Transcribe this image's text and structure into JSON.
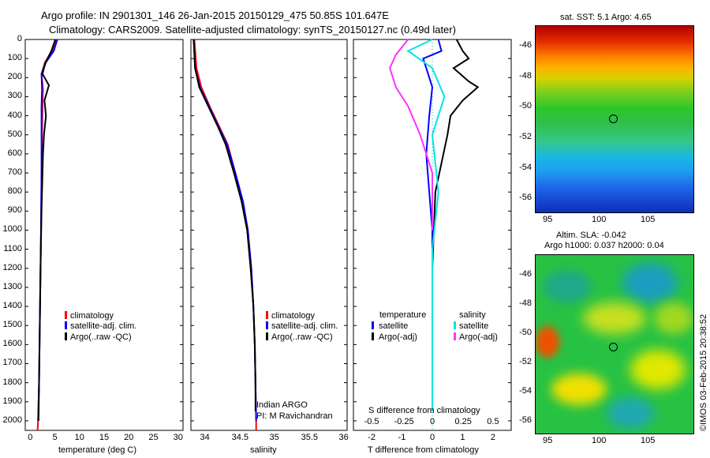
{
  "header": {
    "line1": "Argo profile: IN 2901301_146 26-Jan-2015 20150129_475 50.85S 101.647E",
    "line2": "Climatology: CARS2009. Satellite-adjusted climatology: synTS_20150127.nc (0.49d later)"
  },
  "depth_ticks": [
    "0",
    "100",
    "200",
    "300",
    "400",
    "500",
    "600",
    "700",
    "800",
    "900",
    "1000",
    "1100",
    "1200",
    "1300",
    "1400",
    "1500",
    "1600",
    "1700",
    "1800",
    "1900",
    "2000"
  ],
  "colors": {
    "climatology": "#ff0000",
    "satellite": "#0000ff",
    "argo": "#000000",
    "sal_satellite": "#00e5e5",
    "sal_argo": "#ff33ff"
  },
  "panel_temp": {
    "xlabel": "temperature (deg C)",
    "ticks": [
      "0",
      "5",
      "10",
      "15",
      "20",
      "25",
      "30"
    ],
    "legend": [
      "climatology",
      "satellite-adj. clim.",
      "Argo(..raw -QC)"
    ]
  },
  "panel_sal": {
    "xlabel": "salinity",
    "ticks": [
      "34",
      "34.5",
      "35",
      "35.5",
      "36"
    ],
    "legend": [
      "climatology",
      "satellite-adj. clim.",
      "Argo(..raw -QC)"
    ],
    "note1": "Indian ARGO",
    "note2": "PI: M Ravichandran"
  },
  "panel_diff": {
    "top_label": "S difference from climatology",
    "top_ticks": [
      "-0.5",
      "-0.25",
      "0",
      "0.25",
      "0.5"
    ],
    "bottom_ticks": [
      "-2",
      "-1",
      "0",
      "1",
      "2"
    ],
    "xlabel": "T difference from climatology",
    "legend_temp_title": "temperature",
    "legend_sal_title": "salinity",
    "legend_temp": [
      "satellite",
      "Argo(-adj)"
    ],
    "legend_sal": [
      "satellite",
      "Argo(-adj)"
    ]
  },
  "map_sst": {
    "title": "sat. SST: 5.1  Argo: 4.65",
    "yticks": [
      "-46",
      "-48",
      "-50",
      "-52",
      "-54",
      "-56"
    ],
    "xticks": [
      "95",
      "100",
      "105"
    ]
  },
  "map_sla": {
    "title1": "Altim. SLA: -0.042",
    "title2": "Argo h1000: 0.037 h2000: 0.04",
    "yticks": [
      "-46",
      "-48",
      "-50",
      "-52",
      "-54",
      "-56"
    ],
    "xticks": [
      "95",
      "100",
      "105"
    ]
  },
  "credit": "©IMOS 03-Feb-2015 20:38:52",
  "chart_data": [
    {
      "type": "line",
      "title": "",
      "xlabel": "temperature (deg C)",
      "ylabel": "",
      "xlim": [
        -1,
        31
      ],
      "ylim": [
        2050,
        0
      ],
      "series": [
        {
          "name": "climatology",
          "points": [
            [
              5.3,
              0
            ],
            [
              4.5,
              60
            ],
            [
              3.0,
              120
            ],
            [
              2.3,
              180
            ],
            [
              2.6,
              260
            ],
            [
              2.5,
              350
            ],
            [
              2.4,
              500
            ],
            [
              2.3,
              700
            ],
            [
              2.2,
              1000
            ],
            [
              2.0,
              1400
            ],
            [
              1.8,
              1800
            ],
            [
              1.6,
              2000
            ],
            [
              1.5,
              2050
            ]
          ]
        },
        {
          "name": "satellite-adj. clim.",
          "points": [
            [
              5.5,
              0
            ],
            [
              4.8,
              60
            ],
            [
              3.2,
              120
            ],
            [
              2.3,
              180
            ],
            [
              2.4,
              260
            ],
            [
              2.3,
              350
            ],
            [
              2.3,
              500
            ],
            [
              2.3,
              700
            ],
            [
              2.2,
              1000
            ],
            [
              2.0,
              1400
            ],
            [
              1.8,
              1800
            ],
            [
              1.6,
              2000
            ]
          ]
        },
        {
          "name": "Argo(..raw -QC)",
          "points": [
            [
              5.1,
              0
            ],
            [
              4.3,
              60
            ],
            [
              3.1,
              120
            ],
            [
              2.5,
              180
            ],
            [
              3.8,
              240
            ],
            [
              2.9,
              320
            ],
            [
              3.2,
              400
            ],
            [
              2.8,
              500
            ],
            [
              2.6,
              600
            ],
            [
              2.5,
              700
            ],
            [
              2.3,
              900
            ],
            [
              2.1,
              1200
            ],
            [
              1.9,
              1600
            ],
            [
              1.7,
              2000
            ]
          ]
        }
      ]
    },
    {
      "type": "line",
      "title": "",
      "xlabel": "salinity",
      "ylabel": "",
      "xlim": [
        33.8,
        36.05
      ],
      "ylim": [
        2050,
        0
      ],
      "series": [
        {
          "name": "climatology",
          "points": [
            [
              33.85,
              0
            ],
            [
              33.88,
              150
            ],
            [
              33.95,
              250
            ],
            [
              34.07,
              350
            ],
            [
              34.2,
              450
            ],
            [
              34.33,
              550
            ],
            [
              34.44,
              700
            ],
            [
              34.55,
              850
            ],
            [
              34.62,
              1000
            ],
            [
              34.67,
              1200
            ],
            [
              34.7,
              1400
            ],
            [
              34.72,
              1600
            ],
            [
              34.73,
              1800
            ],
            [
              34.74,
              2000
            ],
            [
              34.74,
              2050
            ]
          ]
        },
        {
          "name": "satellite-adj. clim.",
          "points": [
            [
              33.84,
              0
            ],
            [
              33.86,
              150
            ],
            [
              33.93,
              250
            ],
            [
              34.06,
              350
            ],
            [
              34.19,
              450
            ],
            [
              34.32,
              550
            ],
            [
              34.44,
              700
            ],
            [
              34.55,
              850
            ],
            [
              34.62,
              1000
            ],
            [
              34.67,
              1200
            ],
            [
              34.7,
              1400
            ],
            [
              34.72,
              1600
            ],
            [
              34.73,
              1800
            ],
            [
              34.74,
              2000
            ]
          ]
        },
        {
          "name": "Argo(..raw -QC)",
          "points": [
            [
              33.84,
              0
            ],
            [
              33.86,
              150
            ],
            [
              33.92,
              250
            ],
            [
              34.05,
              350
            ],
            [
              34.18,
              450
            ],
            [
              34.3,
              550
            ],
            [
              34.42,
              700
            ],
            [
              34.53,
              850
            ],
            [
              34.61,
              1000
            ],
            [
              34.66,
              1200
            ],
            [
              34.7,
              1400
            ],
            [
              34.72,
              1600
            ],
            [
              34.73,
              1800
            ],
            [
              34.73,
              1950
            ]
          ]
        }
      ]
    },
    {
      "type": "line",
      "title": "",
      "xlabel": "T difference from climatology",
      "ylabel": "",
      "xlim": [
        -2.6,
        2.6
      ],
      "ylim": [
        2050,
        0
      ],
      "series": [
        {
          "name": "temperature satellite",
          "points": [
            [
              0.2,
              0
            ],
            [
              0.3,
              60
            ],
            [
              -0.3,
              100
            ],
            [
              -0.2,
              150
            ],
            [
              0.0,
              250
            ],
            [
              -0.1,
              400
            ],
            [
              -0.2,
              600
            ],
            [
              -0.1,
              800
            ],
            [
              0.0,
              1000
            ],
            [
              0.0,
              1500
            ],
            [
              0.0,
              1950
            ]
          ]
        },
        {
          "name": "temperature Argo(-adj)",
          "points": [
            [
              0.8,
              0
            ],
            [
              1.0,
              60
            ],
            [
              1.2,
              100
            ],
            [
              0.7,
              150
            ],
            [
              1.2,
              220
            ],
            [
              1.5,
              250
            ],
            [
              1.0,
              320
            ],
            [
              0.6,
              400
            ],
            [
              0.5,
              500
            ],
            [
              0.3,
              650
            ],
            [
              0.1,
              800
            ],
            [
              0.05,
              1000
            ],
            [
              0.0,
              1200
            ]
          ]
        },
        {
          "name": "salinity satellite",
          "points": [
            [
              0.0,
              0
            ],
            [
              -0.2,
              60
            ],
            [
              0.0,
              150
            ],
            [
              0.1,
              300
            ],
            [
              0.0,
              500
            ],
            [
              0.05,
              800
            ],
            [
              0.0,
              1100
            ],
            [
              0.0,
              1500
            ],
            [
              0.0,
              1950
            ]
          ]
        },
        {
          "name": "salinity Argo(-adj)",
          "points": [
            [
              -0.2,
              0
            ],
            [
              -0.3,
              80
            ],
            [
              -0.35,
              150
            ],
            [
              -0.3,
              250
            ],
            [
              -0.2,
              350
            ],
            [
              -0.1,
              500
            ],
            [
              0.0,
              700
            ],
            [
              0.0,
              1000
            ]
          ]
        }
      ]
    }
  ]
}
